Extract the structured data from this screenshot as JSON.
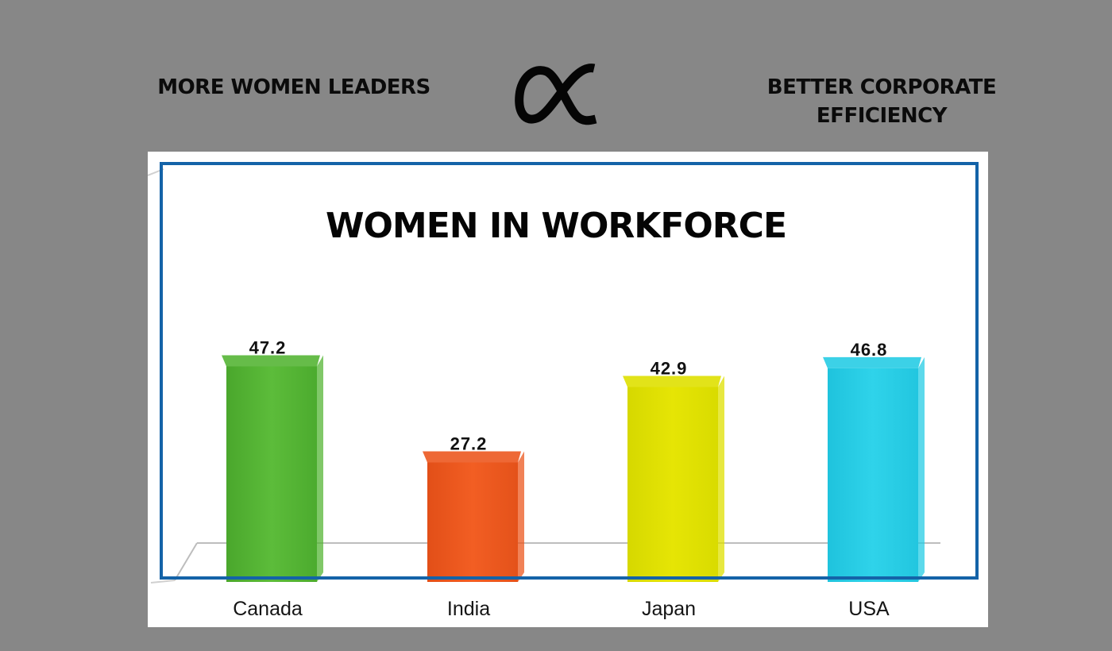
{
  "header": {
    "left_text": "MORE WOMEN LEADERS",
    "symbol": "proportional-to-icon",
    "right_text_line1": "BETTER CORPORATE",
    "right_text_line2": "EFFICIENCY"
  },
  "colors": {
    "background": "#878787",
    "frame": "#1463a8",
    "canada": "#55b535",
    "india": "#ec581f",
    "japan": "#dfe000",
    "usa": "#27cce4"
  },
  "chart_data": {
    "type": "bar",
    "title": "WOMEN IN WORKFORCE",
    "xlabel": "",
    "ylabel": "",
    "categories": [
      "Canada",
      "India",
      "Japan",
      "USA"
    ],
    "values": [
      47.2,
      27.2,
      42.9,
      46.8
    ],
    "value_labels": [
      "47.2",
      "27.2",
      "42.9",
      "46.8"
    ],
    "ylim": [
      0,
      50
    ],
    "grid": false,
    "legend": "none",
    "style": "3d"
  }
}
